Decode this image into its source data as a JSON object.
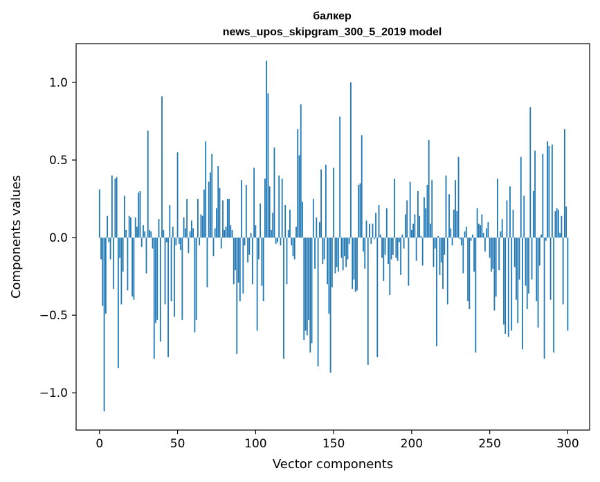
{
  "chart_data": {
    "type": "bar",
    "title_line1": "балкер",
    "title_line2": "news_upos_skipgram_300_5_2019 model",
    "xlabel": "Vector components",
    "ylabel": "Components values",
    "xlim": [
      -15,
      314
    ],
    "ylim": [
      -1.24,
      1.25
    ],
    "xticks": [
      0,
      50,
      100,
      150,
      200,
      250,
      300
    ],
    "xtick_labels": [
      "0",
      "50",
      "100",
      "150",
      "200",
      "250",
      "300"
    ],
    "yticks": [
      -1.0,
      -0.5,
      0.0,
      0.5,
      1.0
    ],
    "ytick_labels": [
      "−1.0",
      "−0.5",
      "0.0",
      "0.5",
      "1.0"
    ],
    "bar_color": "#1f77b4",
    "grid": false,
    "values": [
      0.31,
      -0.14,
      -0.44,
      -1.12,
      -0.49,
      0.14,
      -0.03,
      -0.14,
      0.4,
      -0.33,
      0.38,
      0.39,
      -0.84,
      -0.13,
      -0.43,
      -0.22,
      0.27,
      0.05,
      -0.34,
      0.14,
      0.13,
      -0.38,
      -0.4,
      0.13,
      0.07,
      0.29,
      0.3,
      -0.06,
      0.08,
      0.04,
      -0.23,
      0.69,
      0.05,
      0.04,
      -0.07,
      -0.78,
      -0.55,
      -0.53,
      0.12,
      -0.67,
      0.91,
      0.05,
      -0.43,
      -0.03,
      -0.77,
      0.21,
      -0.41,
      0.07,
      -0.51,
      -0.05,
      0.55,
      -0.04,
      -0.08,
      -0.53,
      0.13,
      0.06,
      0.25,
      -0.1,
      0.04,
      0.11,
      0.06,
      -0.61,
      -0.53,
      0.25,
      -0.05,
      0.15,
      0.14,
      0.31,
      0.62,
      -0.32,
      0.36,
      0.42,
      0.54,
      -0.12,
      0.06,
      0.19,
      0.46,
      0.32,
      -0.07,
      0.24,
      0.05,
      0.07,
      0.25,
      0.25,
      0.08,
      0.05,
      -0.3,
      -0.21,
      -0.75,
      -0.29,
      -0.41,
      0.37,
      -0.36,
      -0.05,
      0.34,
      -0.16,
      -0.11,
      0.03,
      -0.3,
      0.45,
      0.08,
      -0.6,
      -0.14,
      0.22,
      -0.31,
      -0.41,
      0.38,
      1.14,
      0.93,
      0.33,
      0.05,
      0.16,
      0.58,
      -0.04,
      -0.03,
      0.4,
      -0.05,
      0.38,
      -0.78,
      0.21,
      -0.3,
      0.05,
      0.18,
      -0.05,
      -0.12,
      -0.14,
      0.07,
      0.7,
      0.53,
      0.86,
      0.23,
      -0.66,
      -0.6,
      -0.63,
      -0.53,
      -0.74,
      -0.68,
      0.25,
      -0.2,
      0.13,
      -0.83,
      0.1,
      0.44,
      -0.17,
      -0.14,
      0.47,
      -0.3,
      -0.49,
      -0.87,
      -0.32,
      0.45,
      -0.23,
      -0.19,
      -0.22,
      0.78,
      -0.13,
      -0.21,
      -0.12,
      -0.19,
      -0.14,
      -0.04,
      1.0,
      -0.33,
      -0.27,
      -0.35,
      -0.34,
      0.34,
      0.35,
      0.66,
      -0.09,
      -0.2,
      0.11,
      -0.82,
      0.09,
      -0.04,
      0.09,
      -0.01,
      0.16,
      -0.77,
      0.21,
      0.02,
      -0.13,
      -0.28,
      -0.11,
      0.19,
      -0.17,
      -0.37,
      -0.14,
      -0.11,
      0.38,
      -0.13,
      -0.15,
      -0.03,
      -0.24,
      0.02,
      -0.07,
      0.15,
      0.24,
      -0.31,
      0.36,
      0.05,
      0.09,
      0.15,
      -0.15,
      0.3,
      0.14,
      0.01,
      -0.18,
      0.26,
      0.19,
      0.34,
      0.63,
      0.09,
      0.37,
      -0.19,
      -0.07,
      -0.7,
      0.01,
      -0.24,
      -0.16,
      -0.33,
      -0.11,
      0.4,
      -0.43,
      0.28,
      0.06,
      -0.05,
      0.18,
      0.37,
      0.17,
      0.52,
      -0.01,
      -0.05,
      -0.23,
      0.04,
      0.07,
      -0.41,
      -0.46,
      -0.02,
      0.02,
      -0.22,
      -0.74,
      0.19,
      0.09,
      0.08,
      0.15,
      0.03,
      -0.09,
      0.06,
      0.1,
      -0.13,
      -0.22,
      -0.2,
      -0.47,
      -0.38,
      0.38,
      -0.21,
      0.04,
      0.12,
      -0.56,
      -0.62,
      0.24,
      -0.64,
      0.33,
      -0.6,
      0.18,
      -0.19,
      -0.4,
      -0.55,
      -0.27,
      0.52,
      -0.72,
      0.27,
      -0.31,
      -0.46,
      -0.36,
      0.84,
      -0.27,
      0.3,
      0.56,
      -0.41,
      -0.58,
      -0.18,
      0.02,
      0.54,
      -0.78,
      -0.02,
      0.62,
      0.59,
      -0.4,
      0.6,
      -0.74,
      0.17,
      0.19,
      0.18,
      0.03,
      0.14,
      -0.43,
      0.7,
      0.2,
      -0.6
    ]
  }
}
